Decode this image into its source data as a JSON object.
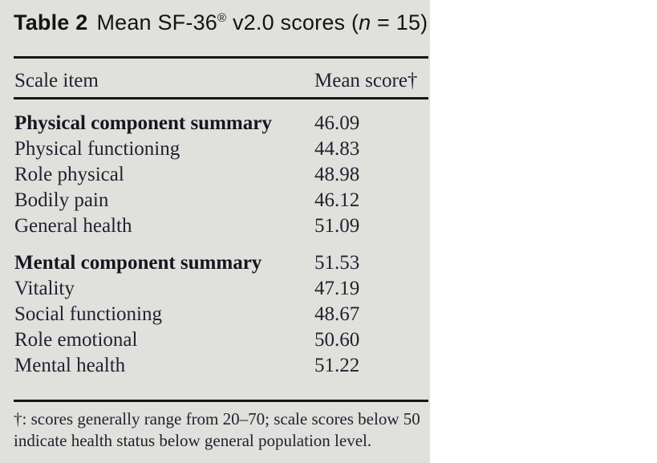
{
  "colors": {
    "page_background": "#ffffff",
    "panel_background": "#e0e0dd",
    "rule": "#161616",
    "title_text": "#141414",
    "body_text": "#22222f"
  },
  "title": {
    "label": "Table 2",
    "main": "Mean SF-36",
    "reg_mark": "®",
    "after_reg": " v2.0 scores (",
    "n_var": "n",
    "after_n": " = 15)"
  },
  "header": {
    "scale_item": "Scale item",
    "mean_score": "Mean score†"
  },
  "table": {
    "rows": [
      {
        "label": "Physical component summary",
        "value": "46.09"
      },
      {
        "label": "Physical functioning",
        "value": "44.83"
      },
      {
        "label": "Role physical",
        "value": "48.98"
      },
      {
        "label": "Bodily pain",
        "value": "46.12"
      },
      {
        "label": "General health",
        "value": "51.09"
      },
      {
        "label": "Mental component summary",
        "value": "51.53"
      },
      {
        "label": "Vitality",
        "value": "47.19"
      },
      {
        "label": "Social functioning",
        "value": "48.67"
      },
      {
        "label": "Role emotional",
        "value": "50.60"
      },
      {
        "label": "Mental health",
        "value": "51.22"
      }
    ]
  },
  "footnote": {
    "line1": "†: scores generally range from 20–70; scale scores below 50",
    "line2": "indicate health status below general population level."
  },
  "chart_data": {
    "type": "table",
    "title": "Table 2 Mean SF-36® v2.0 scores (n = 15)",
    "columns": [
      "Scale item",
      "Mean score†"
    ],
    "rows": [
      [
        "Physical component summary",
        46.09
      ],
      [
        "Physical functioning",
        44.83
      ],
      [
        "Role physical",
        48.98
      ],
      [
        "Bodily pain",
        46.12
      ],
      [
        "General health",
        51.09
      ],
      [
        "Mental component summary",
        51.53
      ],
      [
        "Vitality",
        47.19
      ],
      [
        "Social functioning",
        48.67
      ],
      [
        "Role emotional",
        50.6
      ],
      [
        "Mental health",
        51.22
      ]
    ],
    "footnote": "†: scores generally range from 20–70; scale scores below 50 indicate health status below general population level."
  }
}
